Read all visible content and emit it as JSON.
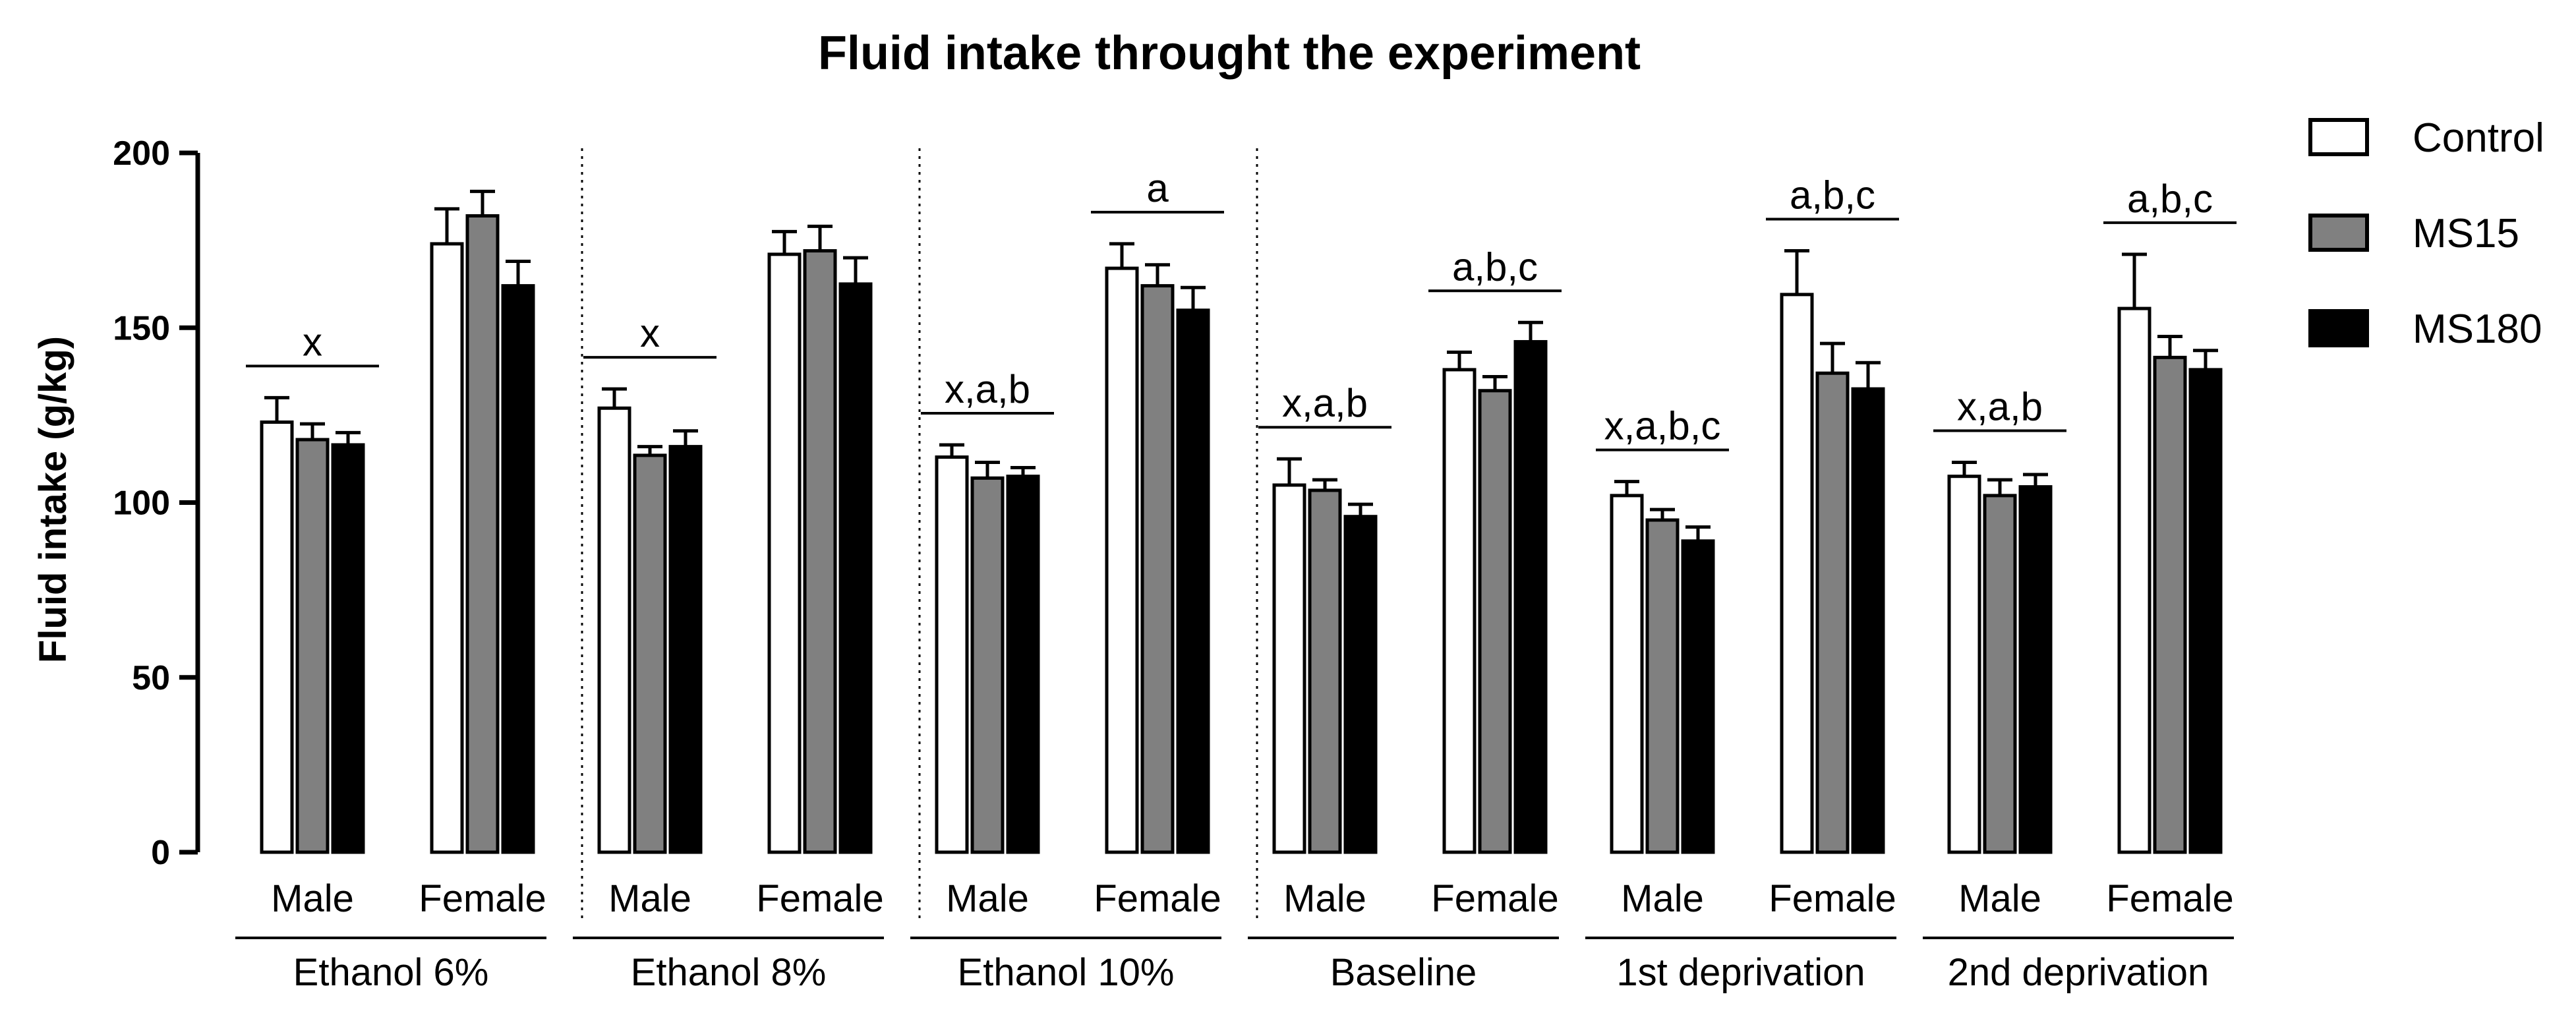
{
  "chart_data": {
    "type": "bar",
    "title": "Fluid intake throught the experiment",
    "xlabel": "",
    "ylabel": "Fluid intake (g/kg)",
    "ylim": [
      0,
      200
    ],
    "yticks": [
      0,
      50,
      100,
      150,
      200
    ],
    "grid": false,
    "legend": {
      "position": "top-right",
      "entries": [
        {
          "name": "Control",
          "color": "#ffffff"
        },
        {
          "name": "MS15",
          "color": "#808080"
        },
        {
          "name": "MS180",
          "color": "#000000"
        }
      ]
    },
    "series_names": [
      "Control",
      "MS15",
      "MS180"
    ],
    "series_colors": [
      "#ffffff",
      "#808080",
      "#000000"
    ],
    "groups": [
      {
        "name": "Ethanol 6%",
        "subgroups": [
          {
            "label": "Male",
            "values": [
              123,
              118,
              116.5
            ],
            "errors": [
              7,
              4.5,
              3.5
            ],
            "annotation": "x"
          },
          {
            "label": "Female",
            "values": [
              174,
              182,
              162
            ],
            "errors": [
              10,
              7,
              7
            ],
            "annotation": ""
          }
        ]
      },
      {
        "name": "Ethanol 8%",
        "subgroups": [
          {
            "label": "Male",
            "values": [
              127,
              113.5,
              116
            ],
            "errors": [
              5.5,
              2.5,
              4.5
            ],
            "annotation": "x"
          },
          {
            "label": "Female",
            "values": [
              171,
              172,
              162.5
            ],
            "errors": [
              6.5,
              7,
              7.5
            ],
            "annotation": ""
          }
        ]
      },
      {
        "name": "Ethanol 10%",
        "subgroups": [
          {
            "label": "Male",
            "values": [
              113,
              107,
              107.5
            ],
            "errors": [
              3.5,
              4.5,
              2.5
            ],
            "annotation": "x,a,b"
          },
          {
            "label": "Female",
            "values": [
              167,
              162,
              155
            ],
            "errors": [
              7,
              6,
              6.5
            ],
            "annotation": "a"
          }
        ]
      },
      {
        "name": "Baseline",
        "subgroups": [
          {
            "label": "Male",
            "values": [
              105,
              103.5,
              96
            ],
            "errors": [
              7.5,
              3,
              3.5
            ],
            "annotation": "x,a,b"
          },
          {
            "label": "Female",
            "values": [
              138,
              132,
              146
            ],
            "errors": [
              5,
              4,
              5.5
            ],
            "annotation": "a,b,c"
          }
        ]
      },
      {
        "name": "1st deprivation",
        "subgroups": [
          {
            "label": "Male",
            "values": [
              102,
              95,
              89
            ],
            "errors": [
              4,
              3,
              4
            ],
            "annotation": "x,a,b,c"
          },
          {
            "label": "Female",
            "values": [
              159.5,
              137,
              132.5
            ],
            "errors": [
              12.5,
              8.5,
              7.5
            ],
            "annotation": "a,b,c"
          }
        ]
      },
      {
        "name": "2nd deprivation",
        "subgroups": [
          {
            "label": "Male",
            "values": [
              107.5,
              102,
              104.5
            ],
            "errors": [
              4,
              4.5,
              3.5
            ],
            "annotation": "x,a,b"
          },
          {
            "label": "Female",
            "values": [
              155.5,
              141.5,
              138
            ],
            "errors": [
              15.5,
              6,
              5.5
            ],
            "annotation": "a,b,c"
          }
        ]
      }
    ]
  }
}
